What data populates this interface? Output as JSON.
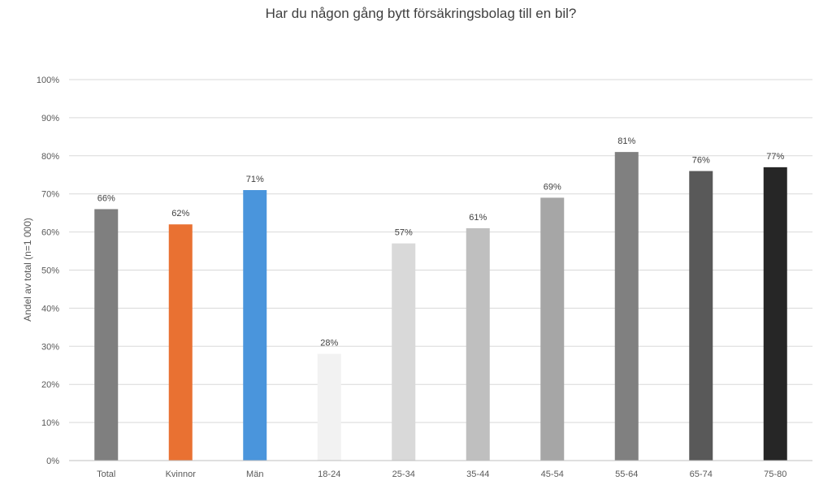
{
  "chart_data": {
    "type": "bar",
    "title": "Har du någon gång bytt försäkringsbolag till en bil?",
    "ylabel": "Andel av total (n=1 000)",
    "xlabel": "",
    "ylim": [
      0,
      100
    ],
    "yticks": [
      "0%",
      "10%",
      "20%",
      "30%",
      "40%",
      "50%",
      "60%",
      "70%",
      "80%",
      "90%",
      "100%"
    ],
    "grid": true,
    "categories": [
      "Total",
      "Kvinnor",
      "Män",
      "18-24",
      "25-34",
      "35-44",
      "45-54",
      "55-64",
      "65-74",
      "75-80"
    ],
    "values": [
      66,
      62,
      71,
      28,
      57,
      61,
      69,
      81,
      76,
      77
    ],
    "data_labels": [
      "66%",
      "62%",
      "71%",
      "28%",
      "57%",
      "61%",
      "69%",
      "81%",
      "76%",
      "77%"
    ],
    "colors": [
      "#7f7f7f",
      "#e97132",
      "#4a95dc",
      "#f2f2f2",
      "#d9d9d9",
      "#bfbfbf",
      "#a6a6a6",
      "#808080",
      "#595959",
      "#262626"
    ]
  }
}
